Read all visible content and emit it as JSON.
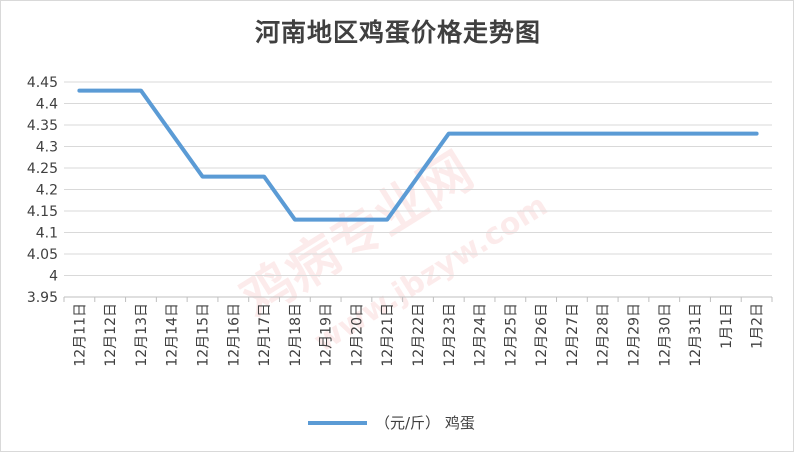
{
  "chart_data": {
    "type": "line",
    "title": "河南地区鸡蛋价格走势图",
    "xlabel": "",
    "ylabel": "",
    "ylim": [
      3.95,
      4.45
    ],
    "yticks": [
      "4.45",
      "4.4",
      "4.35",
      "4.3",
      "4.25",
      "4.2",
      "4.15",
      "4.1",
      "4.05",
      "4",
      "3.95"
    ],
    "categories": [
      "12月11日",
      "12月12日",
      "12月13日",
      "12月14日",
      "12月15日",
      "12月16日",
      "12月17日",
      "12月18日",
      "12月19日",
      "12月20日",
      "12月21日",
      "12月22日",
      "12月23日",
      "12月24日",
      "12月25日",
      "12月26日",
      "12月27日",
      "12月28日",
      "12月29日",
      "12月30日",
      "12月31日",
      "1月1日",
      "1月2日"
    ],
    "series": [
      {
        "name": "（元/斤） 鸡蛋",
        "color": "#5b9bd5",
        "values": [
          4.43,
          4.43,
          4.43,
          4.33,
          4.23,
          4.23,
          4.23,
          4.13,
          4.13,
          4.13,
          4.13,
          4.23,
          4.33,
          4.33,
          4.33,
          4.33,
          4.33,
          4.33,
          4.33,
          4.33,
          4.33,
          4.33,
          4.33
        ]
      }
    ],
    "grid": true,
    "legend": "bottom",
    "watermark": "鸡病专业网 www.jbzyw.com"
  }
}
